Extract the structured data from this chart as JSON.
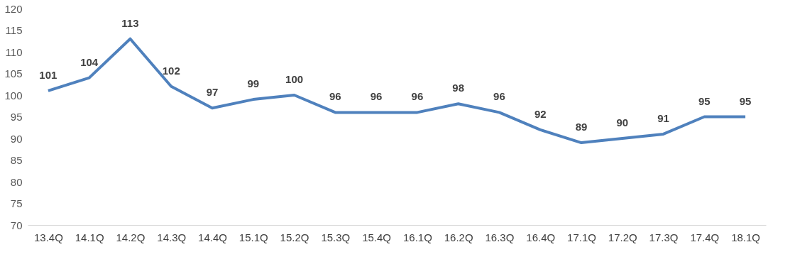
{
  "chart_data": {
    "type": "line",
    "categories": [
      "13.4Q",
      "14.1Q",
      "14.2Q",
      "14.3Q",
      "14.4Q",
      "15.1Q",
      "15.2Q",
      "15.3Q",
      "15.4Q",
      "16.1Q",
      "16.2Q",
      "16.3Q",
      "16.4Q",
      "17.1Q",
      "17.2Q",
      "17.3Q",
      "17.4Q",
      "18.1Q"
    ],
    "series": [
      {
        "color": "#4f81bd",
        "values": [
          101,
          104,
          113,
          102,
          97,
          99,
          100,
          96,
          96,
          96,
          98,
          96,
          92,
          89,
          90,
          91,
          95,
          95
        ]
      }
    ],
    "ylim": [
      70,
      120
    ],
    "yticks": [
      70,
      75,
      80,
      85,
      90,
      95,
      100,
      105,
      110,
      115,
      120
    ],
    "grid": false,
    "data_labels": true,
    "marker": "none",
    "line_style": "solid"
  }
}
